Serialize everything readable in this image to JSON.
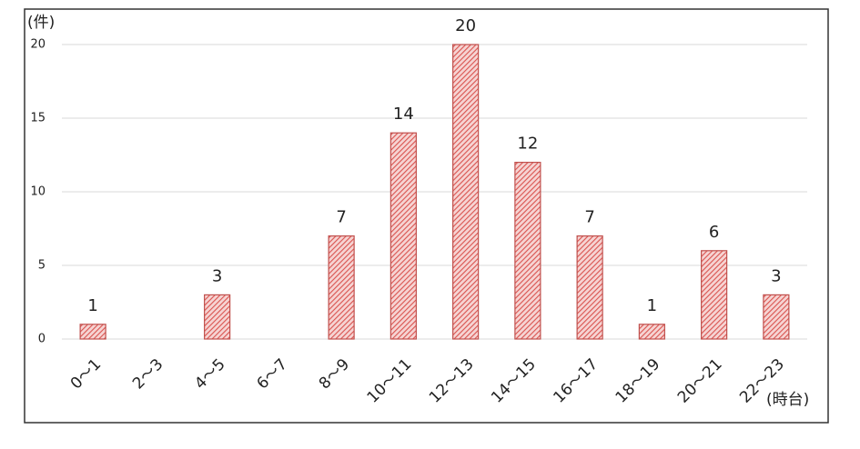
{
  "chart_data": {
    "type": "bar",
    "y_unit": "(件)",
    "x_unit": "(時台)",
    "categories": [
      "0〜1",
      "2〜3",
      "4〜5",
      "6〜7",
      "8〜9",
      "10〜11",
      "12〜13",
      "14〜15",
      "16〜17",
      "18〜19",
      "20〜21",
      "22〜23"
    ],
    "values": [
      1,
      null,
      3,
      null,
      7,
      14,
      20,
      12,
      7,
      1,
      6,
      3
    ],
    "color": "#c0504d",
    "ylim": [
      0,
      20
    ],
    "yticks": [
      0,
      5,
      10,
      15,
      20
    ],
    "grid": true
  }
}
